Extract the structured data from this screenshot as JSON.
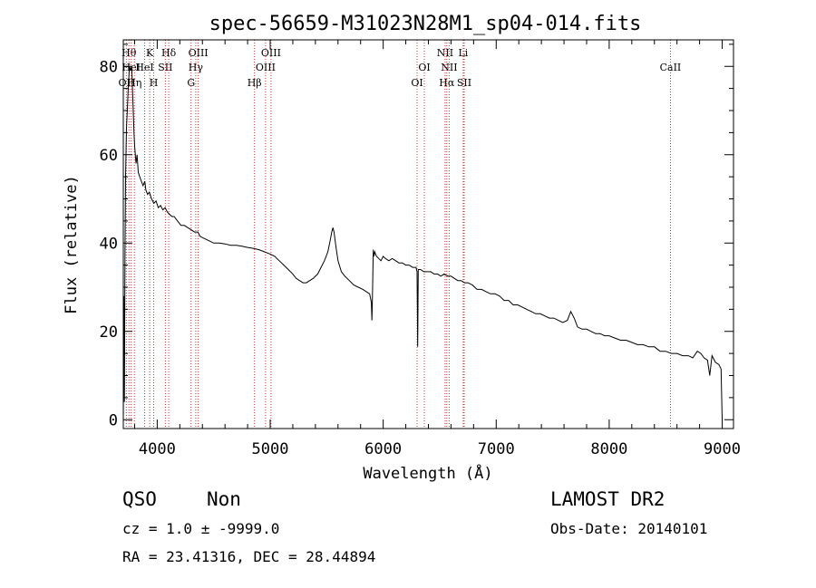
{
  "chart_data": {
    "type": "line",
    "title": "spec-56659-M31023N28M1_sp04-014.fits",
    "xlabel": "Wavelength (Å)",
    "ylabel": "Flux (relative)",
    "xlim": [
      3700,
      9100
    ],
    "ylim": [
      -2,
      86
    ],
    "x_ticks": [
      4000,
      5000,
      6000,
      7000,
      8000,
      9000
    ],
    "y_ticks": [
      0,
      20,
      40,
      60,
      80
    ],
    "series": [
      {
        "points": [
          [
            3700,
            0.0
          ],
          [
            3705,
            28.0
          ],
          [
            3710,
            4.0
          ],
          [
            3715,
            38.0
          ],
          [
            3720,
            55.0
          ],
          [
            3728,
            66.0
          ],
          [
            3735,
            70.0
          ],
          [
            3745,
            76.0
          ],
          [
            3755,
            80.0
          ],
          [
            3765,
            79.0
          ],
          [
            3775,
            80.0
          ],
          [
            3785,
            72.0
          ],
          [
            3795,
            65.0
          ],
          [
            3800,
            62.0
          ],
          [
            3812,
            58.0
          ],
          [
            3822,
            60.0
          ],
          [
            3832,
            56.0
          ],
          [
            3845,
            55.0
          ],
          [
            3860,
            54.0
          ],
          [
            3875,
            53.0
          ],
          [
            3890,
            54.0
          ],
          [
            3900,
            52.0
          ],
          [
            3915,
            51.0
          ],
          [
            3930,
            51.5
          ],
          [
            3950,
            50.0
          ],
          [
            3970,
            49.0
          ],
          [
            3990,
            49.5
          ],
          [
            4010,
            48.0
          ],
          [
            4030,
            48.5
          ],
          [
            4050,
            47.5
          ],
          [
            4070,
            48.0
          ],
          [
            4090,
            47.0
          ],
          [
            4110,
            46.5
          ],
          [
            4130,
            46.0
          ],
          [
            4150,
            46.0
          ],
          [
            4180,
            45.0
          ],
          [
            4210,
            44.0
          ],
          [
            4240,
            44.0
          ],
          [
            4270,
            43.5
          ],
          [
            4300,
            43.0
          ],
          [
            4330,
            42.5
          ],
          [
            4360,
            42.5
          ],
          [
            4380,
            41.5
          ],
          [
            4420,
            41.0
          ],
          [
            4460,
            40.5
          ],
          [
            4500,
            40.0
          ],
          [
            4550,
            40.0
          ],
          [
            4600,
            39.8
          ],
          [
            4650,
            39.5
          ],
          [
            4700,
            39.5
          ],
          [
            4750,
            39.3
          ],
          [
            4800,
            39.0
          ],
          [
            4850,
            38.8
          ],
          [
            4900,
            38.5
          ],
          [
            4950,
            38.0
          ],
          [
            5000,
            37.5
          ],
          [
            5040,
            37.0
          ],
          [
            5080,
            36.0
          ],
          [
            5120,
            35.0
          ],
          [
            5160,
            34.0
          ],
          [
            5200,
            33.0
          ],
          [
            5230,
            32.0
          ],
          [
            5260,
            31.5
          ],
          [
            5290,
            31.0
          ],
          [
            5320,
            31.0
          ],
          [
            5350,
            31.5
          ],
          [
            5380,
            32.0
          ],
          [
            5420,
            33.0
          ],
          [
            5450,
            34.5
          ],
          [
            5480,
            36.0
          ],
          [
            5510,
            38.0
          ],
          [
            5530,
            40.5
          ],
          [
            5545,
            42.5
          ],
          [
            5555,
            43.5
          ],
          [
            5565,
            42.5
          ],
          [
            5580,
            39.5
          ],
          [
            5600,
            36.0
          ],
          [
            5630,
            33.5
          ],
          [
            5660,
            32.5
          ],
          [
            5700,
            31.5
          ],
          [
            5740,
            30.5
          ],
          [
            5780,
            30.0
          ],
          [
            5820,
            29.5
          ],
          [
            5850,
            29.0
          ],
          [
            5880,
            28.5
          ],
          [
            5895,
            26.5
          ],
          [
            5900,
            22.5
          ],
          [
            5905,
            28.0
          ],
          [
            5912,
            38.5
          ],
          [
            5918,
            37.0
          ],
          [
            5925,
            38.0
          ],
          [
            5940,
            37.0
          ],
          [
            5960,
            36.5
          ],
          [
            5980,
            36.0
          ],
          [
            6000,
            37.0
          ],
          [
            6020,
            36.5
          ],
          [
            6050,
            36.0
          ],
          [
            6080,
            36.5
          ],
          [
            6110,
            36.0
          ],
          [
            6140,
            35.5
          ],
          [
            6170,
            35.5
          ],
          [
            6200,
            35.0
          ],
          [
            6230,
            35.0
          ],
          [
            6260,
            34.5
          ],
          [
            6290,
            34.5
          ],
          [
            6300,
            33.5
          ],
          [
            6305,
            16.5
          ],
          [
            6310,
            34.0
          ],
          [
            6330,
            34.0
          ],
          [
            6360,
            33.5
          ],
          [
            6390,
            33.5
          ],
          [
            6420,
            33.5
          ],
          [
            6450,
            33.0
          ],
          [
            6480,
            33.0
          ],
          [
            6510,
            32.5
          ],
          [
            6540,
            33.0
          ],
          [
            6570,
            32.5
          ],
          [
            6600,
            32.5
          ],
          [
            6630,
            32.0
          ],
          [
            6660,
            31.5
          ],
          [
            6690,
            31.5
          ],
          [
            6720,
            31.0
          ],
          [
            6750,
            31.0
          ],
          [
            6790,
            30.5
          ],
          [
            6830,
            29.5
          ],
          [
            6870,
            29.5
          ],
          [
            6910,
            29.0
          ],
          [
            6950,
            28.5
          ],
          [
            6990,
            28.5
          ],
          [
            7030,
            28.0
          ],
          [
            7070,
            27.0
          ],
          [
            7110,
            27.0
          ],
          [
            7150,
            26.0
          ],
          [
            7190,
            26.0
          ],
          [
            7230,
            25.5
          ],
          [
            7270,
            25.0
          ],
          [
            7310,
            24.5
          ],
          [
            7350,
            24.0
          ],
          [
            7390,
            24.0
          ],
          [
            7430,
            23.5
          ],
          [
            7470,
            23.0
          ],
          [
            7510,
            23.0
          ],
          [
            7550,
            22.5
          ],
          [
            7590,
            22.0
          ],
          [
            7630,
            22.5
          ],
          [
            7660,
            24.5
          ],
          [
            7690,
            23.0
          ],
          [
            7720,
            21.0
          ],
          [
            7760,
            20.5
          ],
          [
            7800,
            20.5
          ],
          [
            7840,
            20.0
          ],
          [
            7880,
            19.5
          ],
          [
            7920,
            19.5
          ],
          [
            7960,
            19.0
          ],
          [
            8000,
            19.0
          ],
          [
            8050,
            18.5
          ],
          [
            8100,
            18.0
          ],
          [
            8150,
            18.0
          ],
          [
            8200,
            17.5
          ],
          [
            8250,
            17.0
          ],
          [
            8300,
            17.0
          ],
          [
            8350,
            16.5
          ],
          [
            8400,
            16.5
          ],
          [
            8450,
            15.5
          ],
          [
            8500,
            15.5
          ],
          [
            8550,
            15.0
          ],
          [
            8600,
            15.0
          ],
          [
            8650,
            14.5
          ],
          [
            8700,
            14.5
          ],
          [
            8740,
            14.0
          ],
          [
            8780,
            15.5
          ],
          [
            8810,
            15.0
          ],
          [
            8840,
            14.0
          ],
          [
            8870,
            13.5
          ],
          [
            8890,
            10.0
          ],
          [
            8910,
            14.5
          ],
          [
            8940,
            13.0
          ],
          [
            8970,
            12.5
          ],
          [
            8990,
            11.5
          ],
          [
            9000,
            0.0
          ]
        ]
      }
    ],
    "annotations": {
      "lines": [
        {
          "x": 3727,
          "label": "OII",
          "row": 3
        },
        {
          "x": 3750,
          "label": "Hθ",
          "row": 1
        },
        {
          "x": 3770,
          "label": "HeI",
          "row": 2
        },
        {
          "x": 3798,
          "label": "Hη",
          "row": 3
        },
        {
          "x": 3889,
          "label": "HeI",
          "row": 2
        },
        {
          "x": 3934,
          "label": "K",
          "row": 1
        },
        {
          "x": 3969,
          "label": "H",
          "row": 3
        },
        {
          "x": 4072,
          "label": "SII",
          "row": 2
        },
        {
          "x": 4102,
          "label": "Hδ",
          "row": 1
        },
        {
          "x": 4300,
          "label": "G",
          "row": 3
        },
        {
          "x": 4341,
          "label": "Hγ",
          "row": 2
        },
        {
          "x": 4363,
          "label": "OIII",
          "row": 1
        },
        {
          "x": 4861,
          "label": "Hβ",
          "row": 3
        },
        {
          "x": 4959,
          "label": "OIII",
          "row": 2
        },
        {
          "x": 5007,
          "label": "OIII",
          "row": 1
        },
        {
          "x": 6300,
          "label": "OI",
          "row": 3
        },
        {
          "x": 6364,
          "label": "OI",
          "row": 2
        },
        {
          "x": 6548,
          "label": "NII",
          "row": 1
        },
        {
          "x": 6563,
          "label": "Hα",
          "row": 3
        },
        {
          "x": 6584,
          "label": "NII",
          "row": 2
        },
        {
          "x": 6708,
          "label": "Li",
          "row": 1
        },
        {
          "x": 6717,
          "label": "SII",
          "row": 3
        },
        {
          "x": 8542,
          "label": "CaII",
          "row": 2
        }
      ]
    },
    "line_color": "#000000",
    "annotation_color": "#c83232"
  },
  "footer": {
    "class_label": "QSO",
    "subclass_label": "Non",
    "survey": "LAMOST DR2",
    "cz": "cz = 1.0 ± -9999.0",
    "obs_date": "Obs-Date: 20140101",
    "radec": "RA =  23.41316, DEC =  28.44894"
  }
}
